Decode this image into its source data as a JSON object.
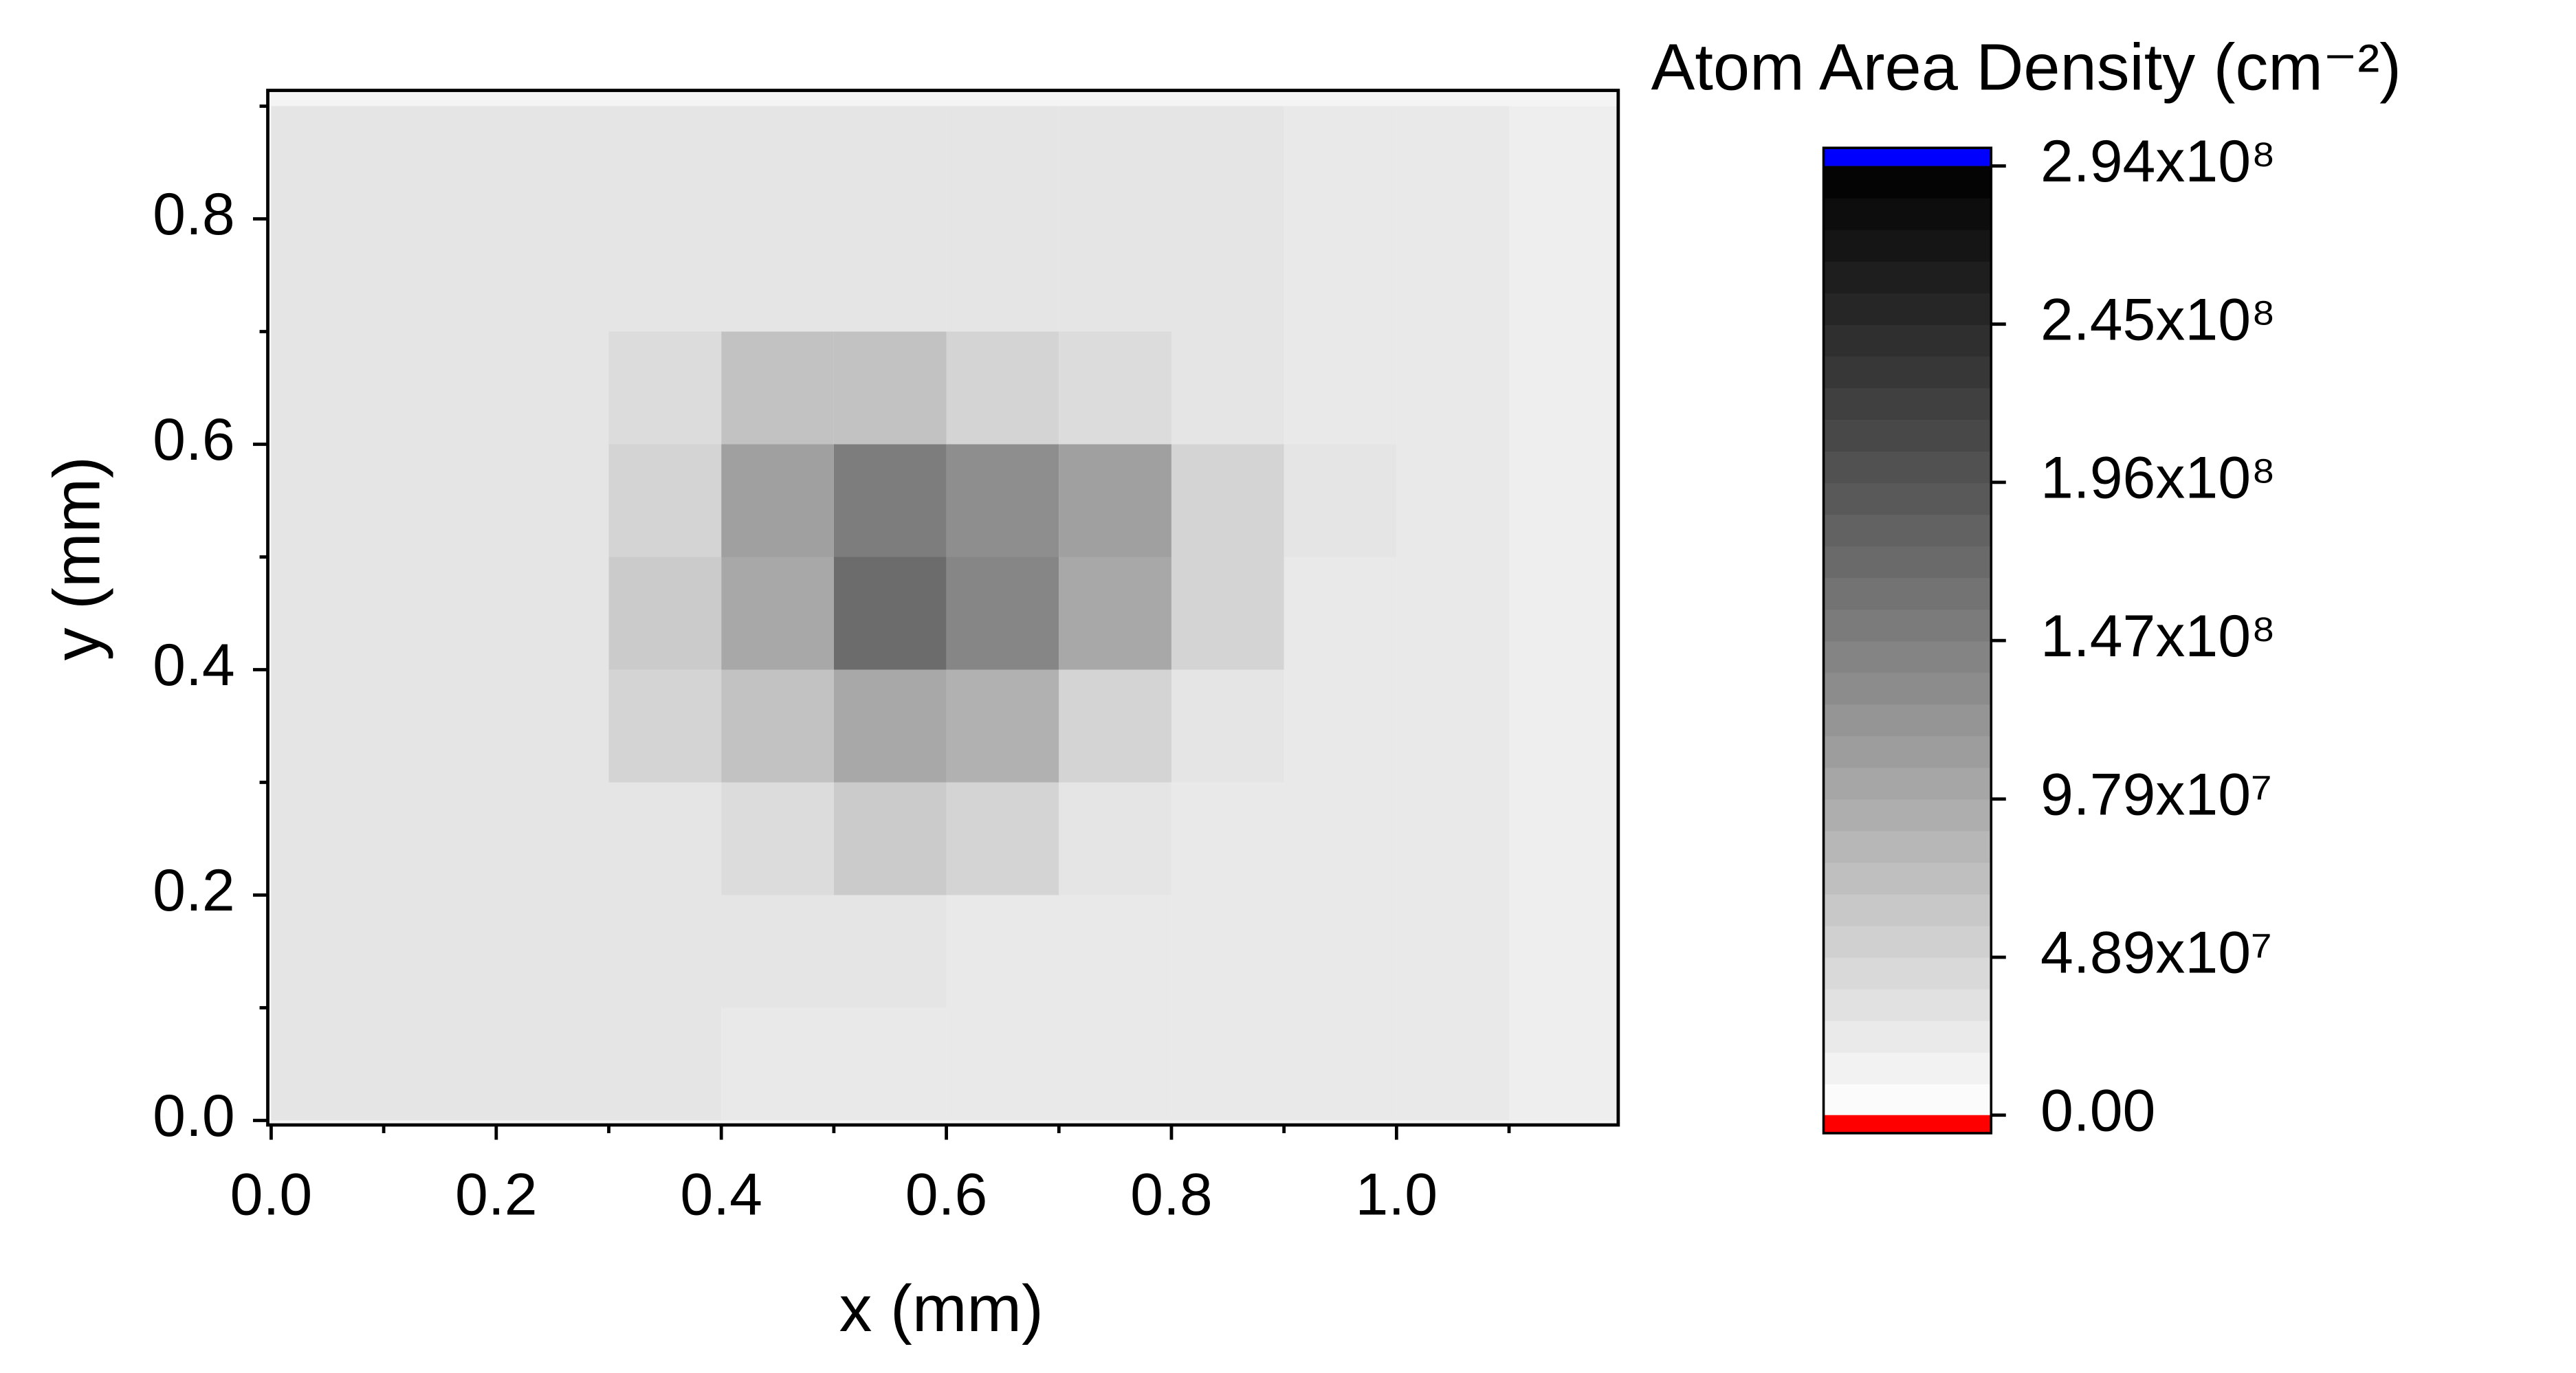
{
  "chart_data": {
    "type": "heatmap",
    "xlabel": "x (mm)",
    "ylabel": "y (mm)",
    "xlim": [
      -0.003,
      1.197
    ],
    "ylim": [
      -0.004,
      0.914
    ],
    "xticks": [
      {
        "value": 0,
        "label": "0.0"
      },
      0.2,
      0.4,
      0.6,
      0.8,
      {
        "value": 1,
        "label": "1.0"
      }
    ],
    "yticks": [
      {
        "value": 0,
        "label": "0.0"
      },
      0.2,
      0.4,
      0.6,
      0.8
    ],
    "x_edges": [
      0,
      0.1,
      0.2,
      0.3,
      0.4,
      0.5,
      0.6,
      0.7,
      0.8,
      0.9,
      1,
      1.1,
      1.2
    ],
    "y_edges": [
      0,
      0.1,
      0.2,
      0.3,
      0.4,
      0.5,
      0.6,
      0.7,
      0.8,
      0.9
    ],
    "z": [
      [
        30000000.0,
        30000000.0,
        30000000.0,
        30000000.0,
        25000000.0,
        25000000.0,
        25000000.0,
        25000000.0,
        25000000.0,
        25000000.0,
        25000000.0,
        20000000.0
      ],
      [
        30000000.0,
        30000000.0,
        30000000.0,
        30000000.0,
        30000000.0,
        30000000.0,
        25000000.0,
        25000000.0,
        25000000.0,
        25000000.0,
        25000000.0,
        20000000.0
      ],
      [
        30000000.0,
        30000000.0,
        30000000.0,
        30000000.0,
        40000000.0,
        60000000.0,
        50000000.0,
        30000000.0,
        25000000.0,
        25000000.0,
        25000000.0,
        20000000.0
      ],
      [
        30000000.0,
        30000000.0,
        30000000.0,
        50000000.0,
        70000000.0,
        100000000.0,
        90000000.0,
        50000000.0,
        30000000.0,
        25000000.0,
        25000000.0,
        20000000.0
      ],
      [
        30000000.0,
        30000000.0,
        30000000.0,
        60000000.0,
        100000000.0,
        170000000.0,
        140000000.0,
        100000000.0,
        50000000.0,
        25000000.0,
        25000000.0,
        20000000.0
      ],
      [
        30000000.0,
        30000000.0,
        30000000.0,
        50000000.0,
        110000000.0,
        150000000.0,
        130000000.0,
        110000000.0,
        50000000.0,
        30000000.0,
        25000000.0,
        20000000.0
      ],
      [
        30000000.0,
        30000000.0,
        30000000.0,
        40000000.0,
        70000000.0,
        70000000.0,
        50000000.0,
        40000000.0,
        30000000.0,
        25000000.0,
        25000000.0,
        20000000.0
      ],
      [
        30000000.0,
        30000000.0,
        30000000.0,
        30000000.0,
        30000000.0,
        30000000.0,
        30000000.0,
        30000000.0,
        30000000.0,
        25000000.0,
        25000000.0,
        20000000.0
      ],
      [
        30000000.0,
        30000000.0,
        30000000.0,
        30000000.0,
        30000000.0,
        30000000.0,
        30000000.0,
        30000000.0,
        30000000.0,
        25000000.0,
        25000000.0,
        20000000.0
      ]
    ],
    "colorbar": {
      "title": "Atom Area Density (cm⁻²)",
      "lim": [
        0,
        294000000
      ],
      "ticks": [
        {
          "value": 0,
          "label": "0.00"
        },
        {
          "value": 48900000,
          "label": "4.89x10⁷"
        },
        {
          "value": 97900000,
          "label": "9.79x10⁷"
        },
        {
          "value": 147000000,
          "label": "1.47x10⁸"
        },
        {
          "value": 196000000,
          "label": "1.96x10⁸"
        },
        {
          "value": 245000000,
          "label": "2.45x10⁸"
        },
        {
          "value": 294000000,
          "label": "2.94x10⁸"
        }
      ],
      "levels": 30,
      "low_color": "#ffffff",
      "high_color": "#000000",
      "over_color": "#0000ff",
      "under_color": "#ff0000"
    }
  }
}
